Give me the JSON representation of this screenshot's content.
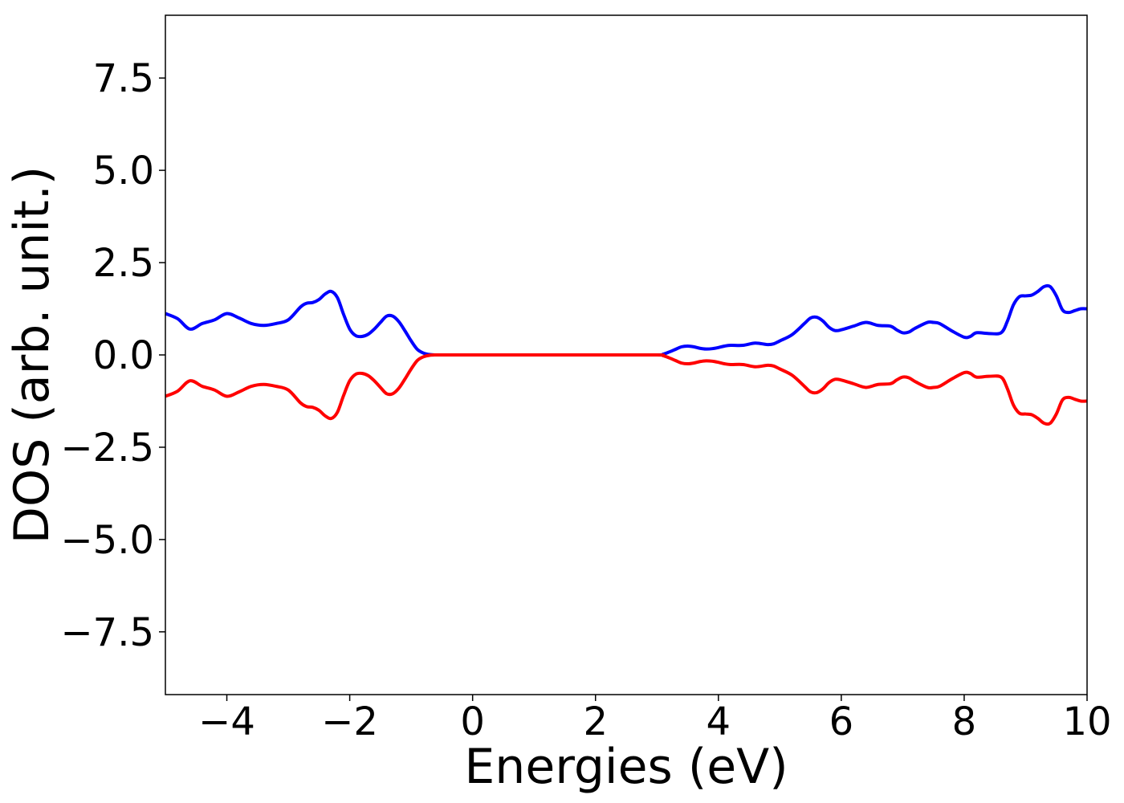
{
  "chart_data": {
    "type": "line",
    "title": "",
    "xlabel": "Energies (eV)",
    "ylabel": "DOS (arb. unit.)",
    "xlim": [
      -5,
      10
    ],
    "ylim": [
      -9.2,
      9.2
    ],
    "xticks": [
      -4,
      -2,
      0,
      2,
      4,
      6,
      8,
      10
    ],
    "xtick_labels": [
      "−4",
      "−2",
      "0",
      "2",
      "4",
      "6",
      "8",
      "10"
    ],
    "yticks": [
      7.5,
      5.0,
      2.5,
      0.0,
      -2.5,
      -5.0,
      -7.5
    ],
    "ytick_labels": [
      "7.5",
      "5.0",
      "2.5",
      "0.0",
      "−2.5",
      "−5.0",
      "−7.5"
    ],
    "grid": false,
    "legend": "none",
    "series": [
      {
        "color": "#0000ff",
        "x": [
          -5.0,
          -4.8,
          -4.6,
          -4.4,
          -4.2,
          -4.0,
          -3.8,
          -3.6,
          -3.4,
          -3.2,
          -3.0,
          -2.8,
          -2.7,
          -2.6,
          -2.5,
          -2.4,
          -2.3,
          -2.2,
          -2.1,
          -2.0,
          -1.9,
          -1.8,
          -1.7,
          -1.6,
          -1.5,
          -1.4,
          -1.3,
          -1.2,
          -1.1,
          -1.0,
          -0.9,
          -0.8,
          -0.7,
          -0.6,
          -0.5,
          -0.4,
          0.0,
          1.0,
          2.0,
          3.0,
          3.1,
          3.2,
          3.3,
          3.4,
          3.5,
          3.6,
          3.7,
          3.8,
          3.9,
          4.0,
          4.1,
          4.2,
          4.4,
          4.6,
          4.8,
          4.9,
          5.0,
          5.2,
          5.4,
          5.5,
          5.6,
          5.7,
          5.8,
          5.9,
          6.0,
          6.2,
          6.4,
          6.6,
          6.8,
          6.9,
          7.0,
          7.1,
          7.2,
          7.4,
          7.5,
          7.6,
          7.8,
          8.0,
          8.1,
          8.2,
          8.4,
          8.6,
          8.7,
          8.8,
          8.9,
          9.0,
          9.1,
          9.2,
          9.3,
          9.4,
          9.5,
          9.6,
          9.7,
          9.8,
          9.9,
          10.0
        ],
        "y": [
          1.12,
          0.98,
          0.7,
          0.85,
          0.95,
          1.12,
          1.0,
          0.85,
          0.8,
          0.85,
          0.95,
          1.3,
          1.4,
          1.42,
          1.5,
          1.65,
          1.72,
          1.55,
          1.1,
          0.7,
          0.52,
          0.5,
          0.56,
          0.7,
          0.88,
          1.05,
          1.05,
          0.9,
          0.65,
          0.38,
          0.15,
          0.05,
          0.01,
          0.0,
          0.0,
          0.0,
          0.0,
          0.0,
          0.0,
          0.0,
          0.02,
          0.08,
          0.15,
          0.22,
          0.24,
          0.22,
          0.18,
          0.16,
          0.17,
          0.2,
          0.24,
          0.26,
          0.26,
          0.32,
          0.28,
          0.3,
          0.38,
          0.55,
          0.85,
          1.0,
          1.02,
          0.92,
          0.75,
          0.66,
          0.68,
          0.78,
          0.88,
          0.8,
          0.78,
          0.68,
          0.6,
          0.62,
          0.72,
          0.88,
          0.88,
          0.85,
          0.65,
          0.48,
          0.5,
          0.6,
          0.58,
          0.6,
          0.9,
          1.35,
          1.58,
          1.6,
          1.62,
          1.72,
          1.85,
          1.85,
          1.6,
          1.22,
          1.15,
          1.2,
          1.25,
          1.25
        ]
      },
      {
        "color": "#ff0000",
        "x": [
          -5.0,
          -4.8,
          -4.6,
          -4.4,
          -4.2,
          -4.0,
          -3.8,
          -3.6,
          -3.4,
          -3.2,
          -3.0,
          -2.8,
          -2.7,
          -2.6,
          -2.5,
          -2.4,
          -2.3,
          -2.2,
          -2.1,
          -2.0,
          -1.9,
          -1.8,
          -1.7,
          -1.6,
          -1.5,
          -1.4,
          -1.3,
          -1.2,
          -1.1,
          -1.0,
          -0.9,
          -0.8,
          -0.7,
          -0.6,
          -0.5,
          -0.4,
          0.0,
          1.0,
          2.0,
          3.0,
          3.1,
          3.2,
          3.3,
          3.4,
          3.5,
          3.6,
          3.7,
          3.8,
          3.9,
          4.0,
          4.1,
          4.2,
          4.4,
          4.6,
          4.8,
          4.9,
          5.0,
          5.2,
          5.4,
          5.5,
          5.6,
          5.7,
          5.8,
          5.9,
          6.0,
          6.2,
          6.4,
          6.6,
          6.8,
          6.9,
          7.0,
          7.1,
          7.2,
          7.4,
          7.5,
          7.6,
          7.8,
          8.0,
          8.1,
          8.2,
          8.4,
          8.6,
          8.7,
          8.8,
          8.9,
          9.0,
          9.1,
          9.2,
          9.3,
          9.4,
          9.5,
          9.6,
          9.7,
          9.8,
          9.9,
          10.0
        ],
        "y": [
          -1.12,
          -0.98,
          -0.7,
          -0.85,
          -0.95,
          -1.12,
          -1.0,
          -0.85,
          -0.8,
          -0.85,
          -0.95,
          -1.3,
          -1.4,
          -1.42,
          -1.5,
          -1.65,
          -1.72,
          -1.55,
          -1.1,
          -0.7,
          -0.52,
          -0.5,
          -0.56,
          -0.7,
          -0.88,
          -1.05,
          -1.05,
          -0.9,
          -0.65,
          -0.38,
          -0.15,
          -0.05,
          -0.01,
          0.0,
          0.0,
          0.0,
          0.0,
          0.0,
          0.0,
          0.0,
          -0.02,
          -0.08,
          -0.15,
          -0.22,
          -0.24,
          -0.22,
          -0.18,
          -0.16,
          -0.17,
          -0.2,
          -0.24,
          -0.26,
          -0.26,
          -0.32,
          -0.28,
          -0.3,
          -0.38,
          -0.55,
          -0.85,
          -1.0,
          -1.02,
          -0.92,
          -0.75,
          -0.66,
          -0.68,
          -0.78,
          -0.88,
          -0.8,
          -0.78,
          -0.68,
          -0.6,
          -0.62,
          -0.72,
          -0.88,
          -0.88,
          -0.85,
          -0.65,
          -0.48,
          -0.5,
          -0.6,
          -0.58,
          -0.6,
          -0.9,
          -1.35,
          -1.58,
          -1.6,
          -1.62,
          -1.72,
          -1.85,
          -1.85,
          -1.6,
          -1.22,
          -1.15,
          -1.2,
          -1.25,
          -1.25
        ]
      }
    ]
  }
}
